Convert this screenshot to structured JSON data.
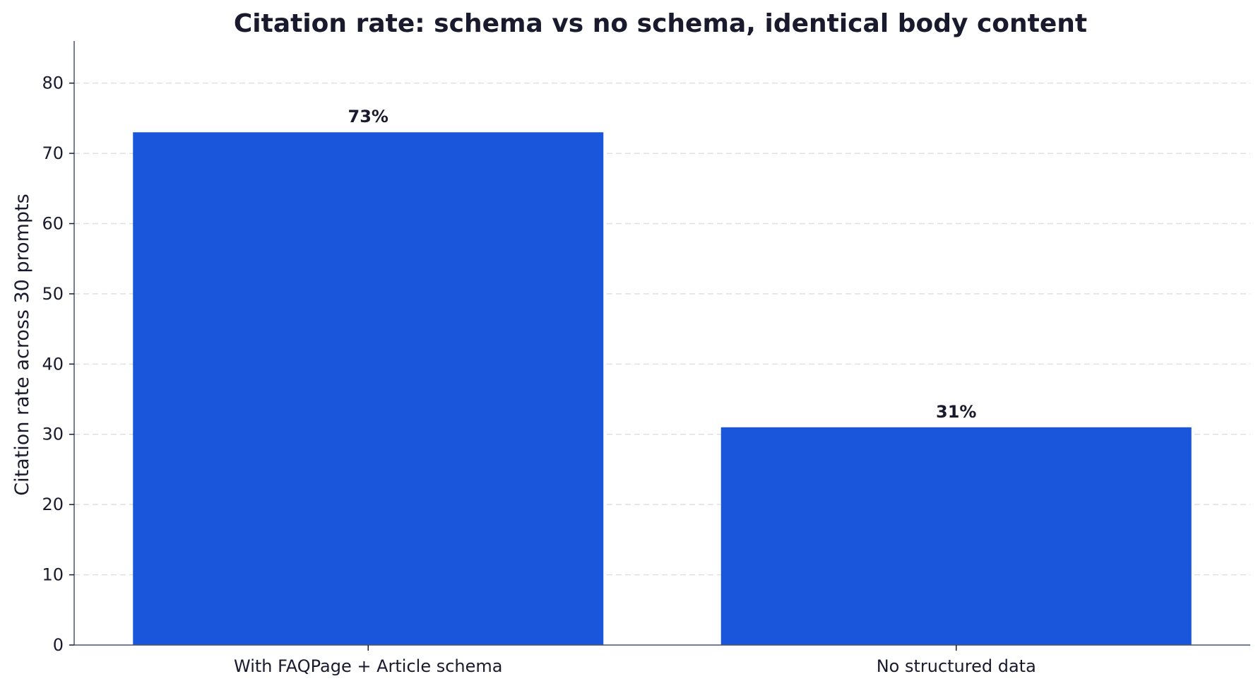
{
  "chart_data": {
    "type": "bar",
    "title": "Citation rate: schema vs no schema, identical body content",
    "xlabel": "",
    "ylabel": "Citation rate across 30 prompts",
    "categories": [
      "With FAQPage + Article schema",
      "No structured data"
    ],
    "values": [
      73,
      31
    ],
    "value_labels": [
      "73%",
      "31%"
    ],
    "ylim": [
      0,
      86
    ],
    "yticks": [
      0,
      10,
      20,
      30,
      40,
      50,
      60,
      70,
      80
    ],
    "grid": true,
    "bar_color": "#1a56db"
  }
}
